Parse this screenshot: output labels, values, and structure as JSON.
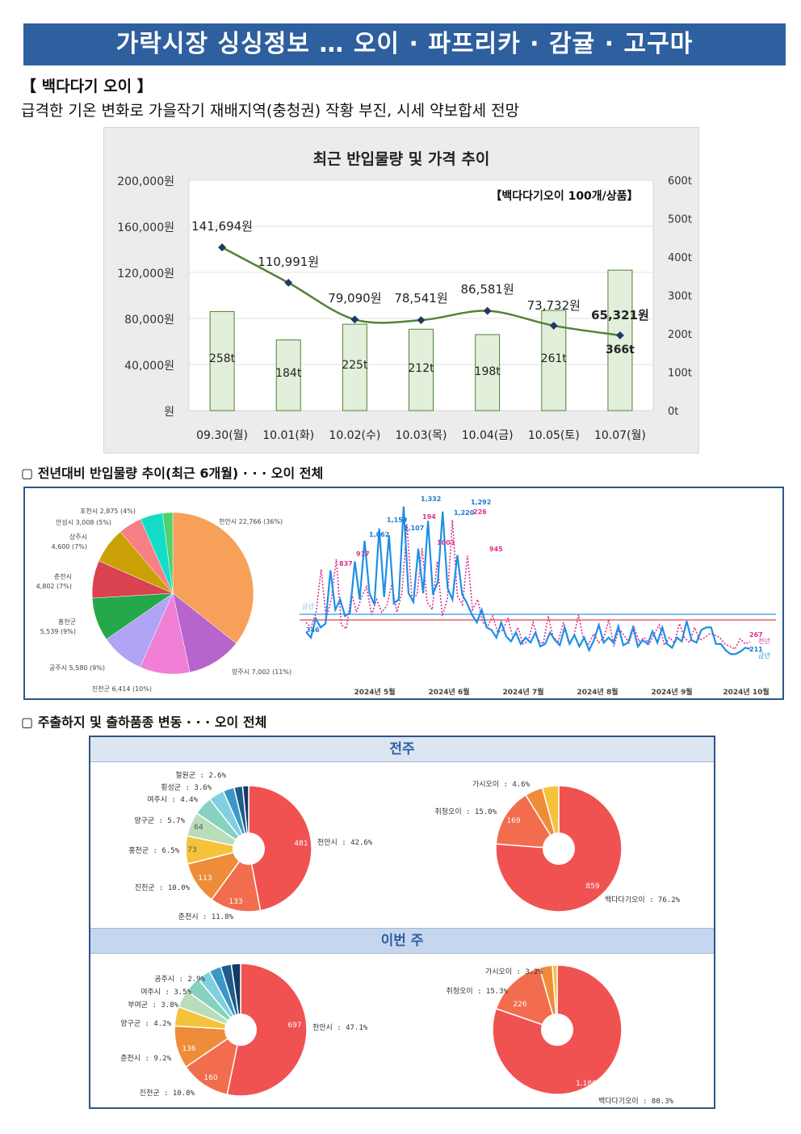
{
  "banner": {
    "title": "가락시장 싱싱정보 …   오이 · 파프리카 · 감귤 · 고구마"
  },
  "section": {
    "title": "【 백다다기 오이 】",
    "subtitle": "급격한 기온 변화로 가을작기 재배지역(충청권) 작황 부진, 시세 약보합세 전망"
  },
  "main_chart": {
    "chart_data": {
      "type": "bar+line",
      "title": "최근 반입물량 및 가격 추이",
      "annotation": "【백다다기오이 100개/상품】",
      "categories": [
        "09.30(월)",
        "10.01(화)",
        "10.02(수)",
        "10.03(목)",
        "10.04(금)",
        "10.05(토)",
        "10.07(월)"
      ],
      "bars": {
        "name": "반입물량",
        "unit": "t",
        "values": [
          258,
          184,
          225,
          212,
          198,
          261,
          366
        ],
        "labels": [
          "258t",
          "184t",
          "225t",
          "212t",
          "198t",
          "261t",
          "366t"
        ],
        "axis": "right",
        "ylim": [
          0,
          600
        ]
      },
      "line": {
        "name": "가격",
        "unit": "원",
        "values": [
          141694,
          110991,
          79090,
          78541,
          86581,
          73732,
          65321
        ],
        "labels": [
          "141,694원",
          "110,991원",
          "79,090원",
          "78,541원",
          "86,581원",
          "73,732원",
          "65,321원"
        ],
        "axis": "left",
        "ylim": [
          0,
          200000
        ]
      },
      "left_ticks": [
        "원",
        "40,000원",
        "80,000원",
        "120,000원",
        "160,000원",
        "200,000원"
      ],
      "right_ticks": [
        "0t",
        "100t",
        "200t",
        "300t",
        "400t",
        "500t",
        "600t"
      ],
      "colors": {
        "bar_fill": "#e2efda",
        "bar_stroke": "#538135",
        "line": "#548235",
        "marker": "#1f3864"
      }
    }
  },
  "yoy_section": {
    "heading": "▢  전년대비 반입물량 추이(최근 6개월) · · · 오이 전체",
    "pie": {
      "chart_data": {
        "type": "pie",
        "slices": [
          {
            "label": "천안시 22,766 (36%)",
            "value": 22766,
            "color": "#f7a05a"
          },
          {
            "label": "양주시 7,002 (11%)",
            "value": 7002,
            "color": "#b565cc"
          },
          {
            "label": "진천군 6,414 (10%)",
            "value": 6414,
            "color": "#f17fd6"
          },
          {
            "label": "공주시 5,580 (9%)",
            "value": 5580,
            "color": "#b0a4f5"
          },
          {
            "label": "홍천군 5,539 (9%)",
            "value": 5539,
            "color": "#24a84a"
          },
          {
            "label": "춘천시 4,802 (7%)",
            "value": 4802,
            "color": "#d9424e"
          },
          {
            "label": "상주시 4,600 (7%)",
            "value": 4600,
            "color": "#c9a106"
          },
          {
            "label": "안성시 3,008 (5%)",
            "value": 3008,
            "color": "#f77f85"
          },
          {
            "label": "포천시 2,875 (4%)",
            "value": 2875,
            "color": "#13ddc8"
          },
          {
            "label": "",
            "value": 1300,
            "color": "#4fd16b"
          }
        ]
      }
    },
    "line": {
      "chart_data": {
        "type": "line",
        "x_ticks": [
          "2024년 5월",
          "2024년 6월",
          "2024년 7월",
          "2024년 8월",
          "2024년 9월",
          "2024년 10월"
        ],
        "series": [
          {
            "name": "금년",
            "color": "#1e90e6",
            "values": [
              346,
              300,
              450,
              380,
              410,
              830,
              520,
              600,
              470,
              495,
              900,
              600,
              1062,
              650,
              560,
              1159,
              620,
              1107,
              570,
              600,
              1332,
              650,
              580,
              1000,
              650,
              1220,
              640,
              740,
              1292,
              690,
              600,
              950,
              640,
              570,
              480,
              420,
              520,
              380,
              360,
              300,
              420,
              310,
              270,
              340,
              250,
              300,
              260,
              340,
              230,
              250,
              340,
              280,
              240,
              380,
              250,
              320,
              230,
              300,
              200,
              280,
              400,
              260,
              300,
              260,
              390,
              240,
              260,
              380,
              230,
              280,
              250,
              350,
              260,
              380,
              250,
              220,
              300,
              270,
              430,
              280,
              260,
              360,
              380,
              380,
              250,
              250,
              200,
              170,
              170,
              190,
              220,
              211
            ]
          },
          {
            "name": "전년",
            "color": "#d9338f",
            "dashed": true,
            "values": [
              420,
              380,
              500,
              837,
              450,
              600,
              917,
              400,
              370,
              650,
              500,
              620,
              700,
              480,
              600,
              500,
              550,
              720,
              500,
              650,
              1194,
              600,
              640,
              1003,
              580,
              520,
              900,
              470,
              600,
              1226,
              630,
              560,
              945,
              520,
              600,
              420,
              390,
              470,
              340,
              360,
              450,
              300,
              380,
              250,
              270,
              420,
              280,
              250,
              470,
              300,
              270,
              420,
              260,
              300,
              480,
              280,
              250,
              330,
              260,
              300,
              440,
              230,
              370,
              320,
              260,
              380,
              270,
              300,
              250,
              330,
              400,
              240,
              300,
              260,
              410,
              300,
              260,
              380,
              280,
              300,
              330,
              320,
              300,
              250,
              230,
              210,
              290,
              250,
              267
            ]
          }
        ],
        "visible_labels": [
          "1,332",
          "1,292",
          "1,220",
          "1,159",
          "1,107",
          "1,062",
          "837",
          "917",
          "346",
          "211",
          "1194",
          "1226",
          "1003",
          "945",
          "267",
          "金年"
        ],
        "ref_lines": [
          {
            "name": "금년 평균",
            "color": "#7fc1ea"
          },
          {
            "name": "전년 평균",
            "color": "#ef8a8a"
          }
        ],
        "legend_labels": {
          "prev": "전년",
          "curr": "금년",
          "avg": "금년"
        }
      }
    }
  },
  "weekly_section": {
    "heading": "▢  주출하지 및 출하품종 변동 · · · 오이 전체",
    "prev_week": {
      "label": "전주",
      "regions": {
        "chart_data": {
          "type": "pie",
          "slices": [
            {
              "label": "천안시 : 42.6%",
              "inner": "481",
              "value": 42.6,
              "color": "#f05252"
            },
            {
              "label": "춘천시 : 11.8%",
              "inner": "133",
              "value": 11.8,
              "color": "#f26d4e"
            },
            {
              "label": "진천군 : 10.0%",
              "inner": "113",
              "value": 10.0,
              "color": "#ef8c3a"
            },
            {
              "label": "홍천군 : 6.5%",
              "inner": "73",
              "value": 6.5,
              "color": "#f5c33b"
            },
            {
              "label": "양구군 : 5.7%",
              "inner": "64",
              "value": 5.7,
              "color": "#b9ddb8"
            },
            {
              "label": "여주시 : 4.4%",
              "inner": "",
              "value": 4.4,
              "color": "#86d1c0"
            },
            {
              "label": "횡성군 : 3.6%",
              "inner": "",
              "value": 3.6,
              "color": "#7fd0e0"
            },
            {
              "label": "철원군 : 2.6%",
              "inner": "",
              "value": 2.6,
              "color": "#3a98c4"
            },
            {
              "label": "",
              "inner": "",
              "value": 2.0,
              "color": "#1c5d8a"
            },
            {
              "label": "",
              "inner": "",
              "value": 1.4,
              "color": "#133a63"
            }
          ]
        }
      },
      "varieties": {
        "chart_data": {
          "type": "pie",
          "slices": [
            {
              "label": "백다다기오이 : 76.2%",
              "inner": "859",
              "value": 76.2,
              "color": "#f05252"
            },
            {
              "label": "취청오이 : 15.0%",
              "inner": "169",
              "value": 15.0,
              "color": "#f26d4e"
            },
            {
              "label": "가시오이 : 4.6%",
              "inner": "",
              "value": 4.6,
              "color": "#ef8c3a"
            },
            {
              "label": "",
              "inner": "",
              "value": 4.2,
              "color": "#f5c33b"
            }
          ]
        }
      }
    },
    "this_week": {
      "label": "이번 주",
      "regions": {
        "chart_data": {
          "type": "pie",
          "slices": [
            {
              "label": "천안시 : 47.1%",
              "inner": "697",
              "value": 47.1,
              "color": "#f05252"
            },
            {
              "label": "진천군 : 10.8%",
              "inner": "160",
              "value": 10.8,
              "color": "#f26d4e"
            },
            {
              "label": "춘천시 : 9.2%",
              "inner": "136",
              "value": 9.2,
              "color": "#ef8c3a"
            },
            {
              "label": "양구군 : 4.2%",
              "inner": "",
              "value": 4.2,
              "color": "#f5c33b"
            },
            {
              "label": "부여군 : 3.8%",
              "inner": "",
              "value": 3.8,
              "color": "#b9ddb8"
            },
            {
              "label": "여주시 : 3.5%",
              "inner": "",
              "value": 3.5,
              "color": "#86d1c0"
            },
            {
              "label": "공주시 : 2.9%",
              "inner": "",
              "value": 2.9,
              "color": "#7fd0e0"
            },
            {
              "label": "",
              "inner": "",
              "value": 2.6,
              "color": "#3a98c4"
            },
            {
              "label": "",
              "inner": "",
              "value": 2.3,
              "color": "#1c5d8a"
            },
            {
              "label": "",
              "inner": "",
              "value": 2.0,
              "color": "#133a63"
            }
          ]
        }
      },
      "varieties": {
        "chart_data": {
          "type": "pie",
          "slices": [
            {
              "label": "백다다기오이 : 80.3%",
              "inner": "1,186",
              "value": 80.3,
              "color": "#f05252"
            },
            {
              "label": "취청오이 : 15.3%",
              "inner": "226",
              "value": 15.3,
              "color": "#f26d4e"
            },
            {
              "label": "가시오이 : 3.2%",
              "inner": "",
              "value": 3.2,
              "color": "#ef8c3a"
            },
            {
              "label": "",
              "inner": "",
              "value": 1.2,
              "color": "#f5c33b"
            }
          ]
        }
      }
    }
  }
}
